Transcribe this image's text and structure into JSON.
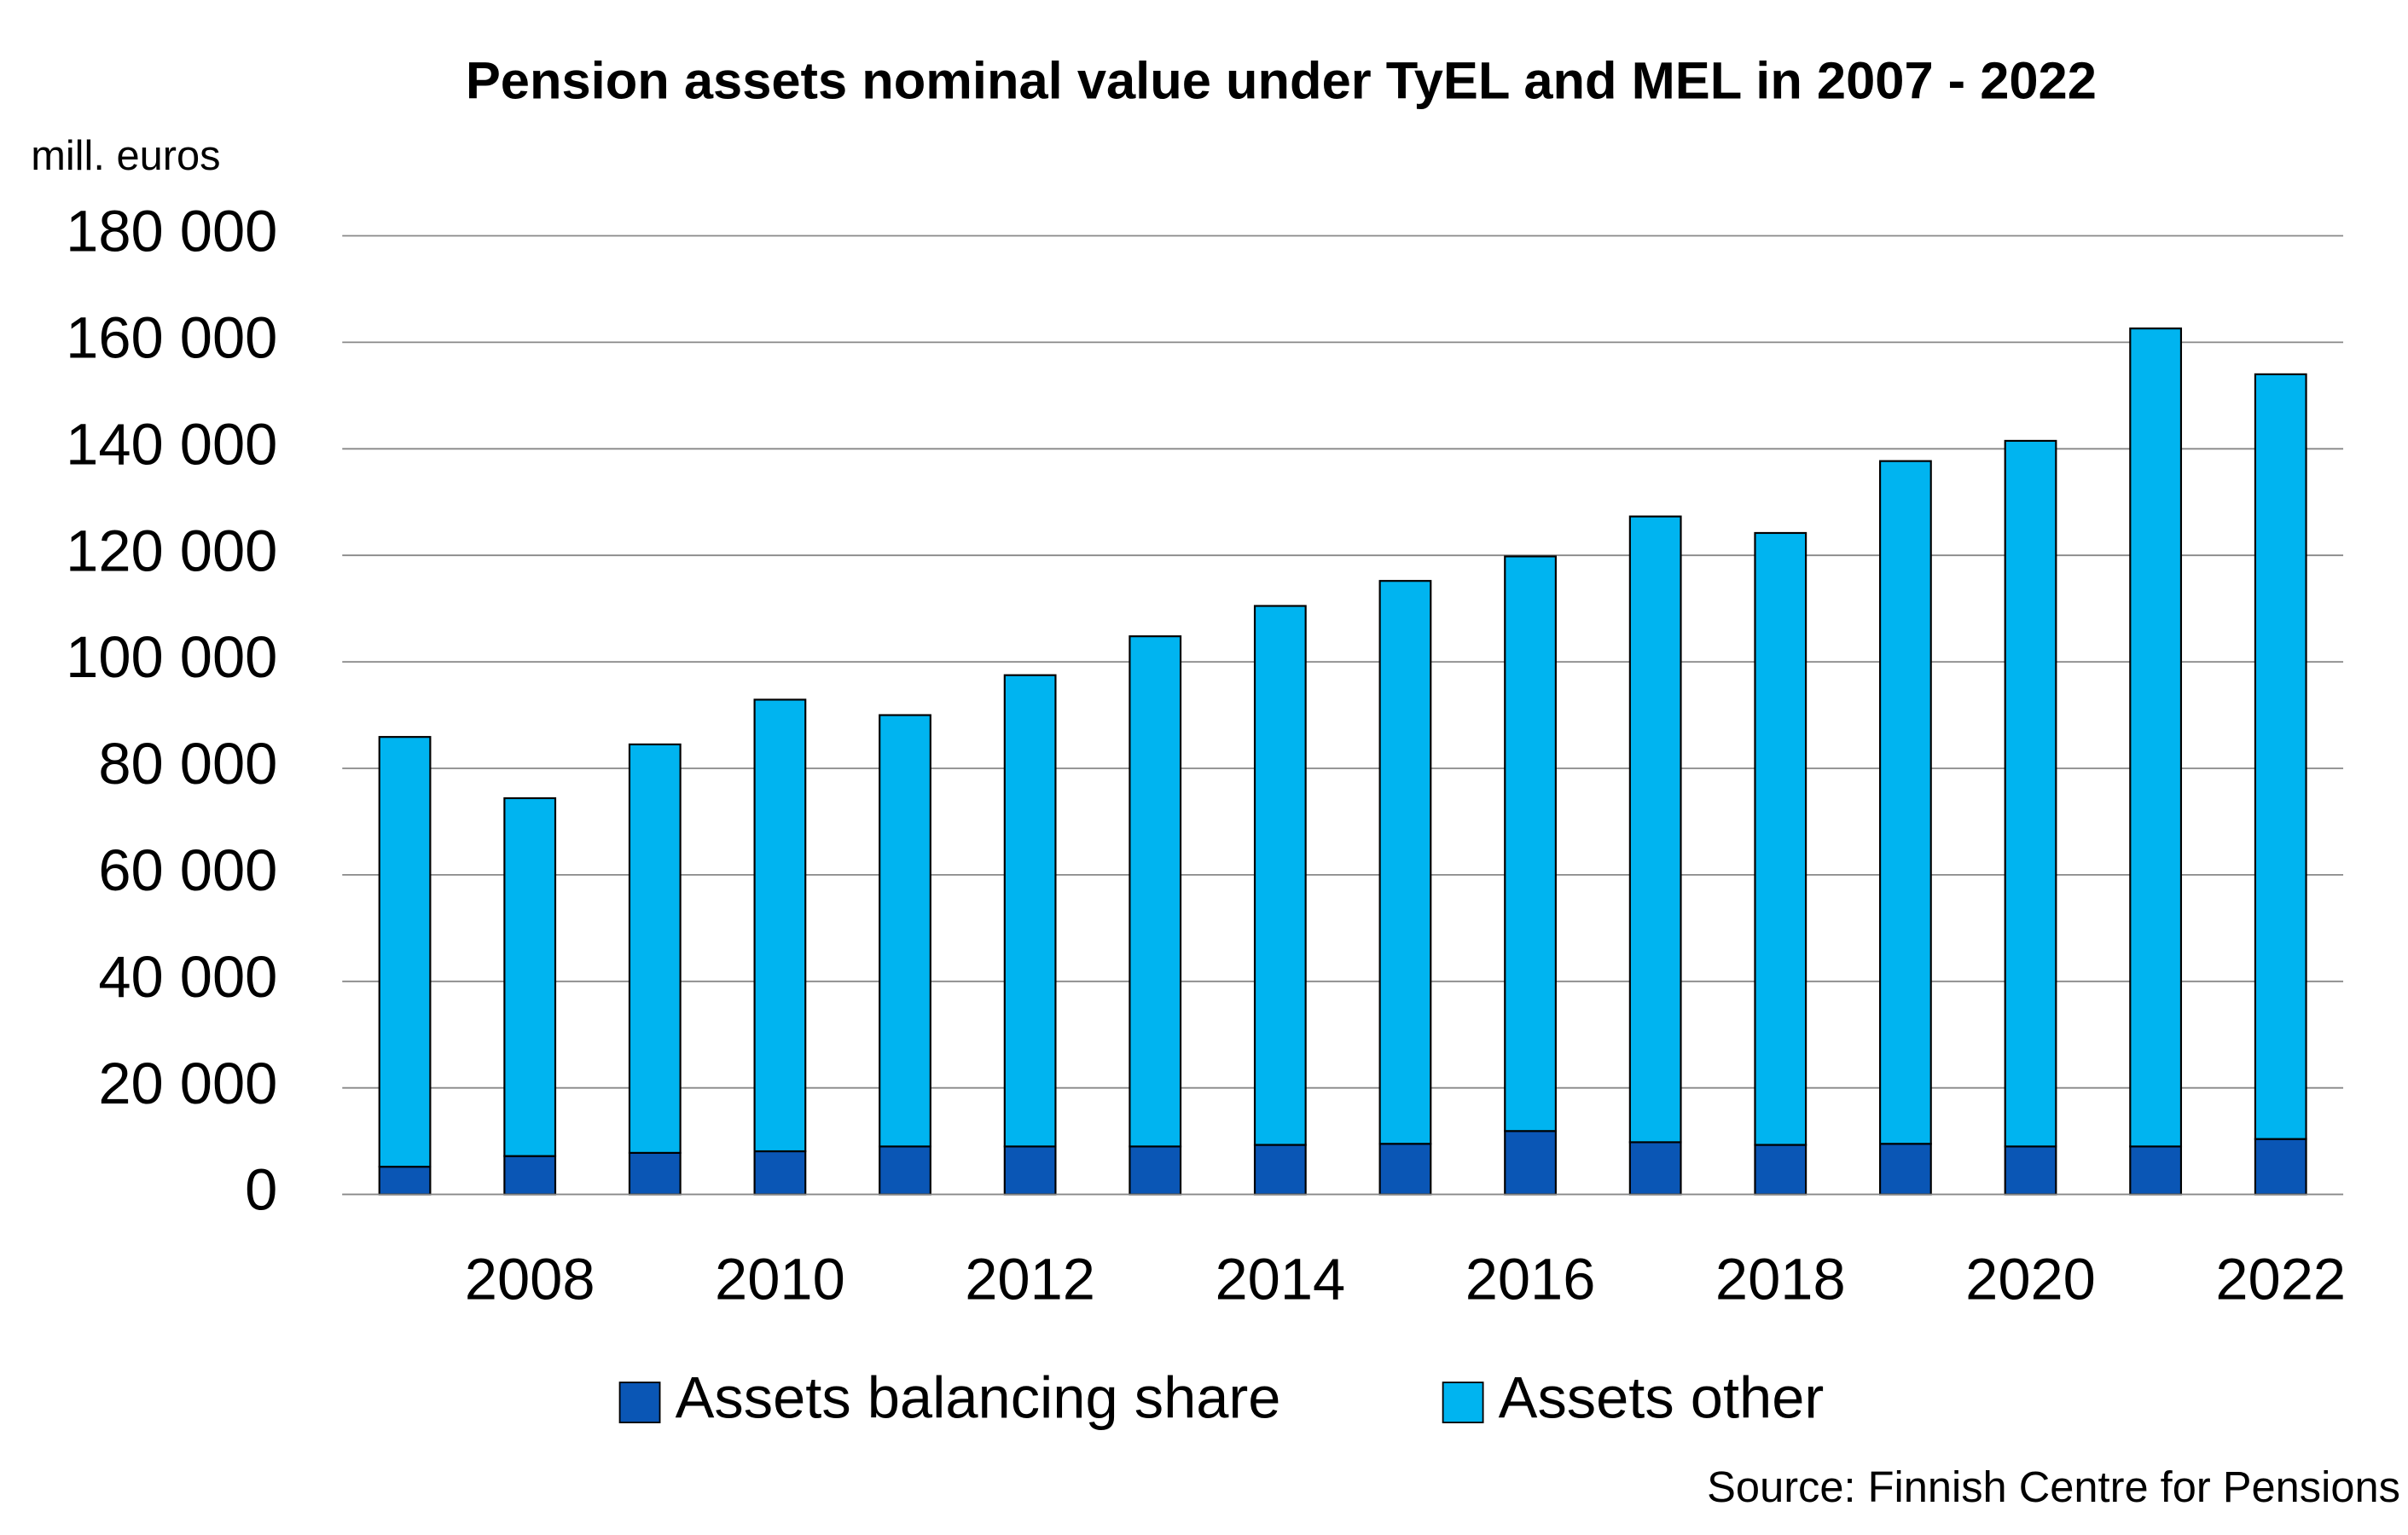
{
  "chart_data": {
    "type": "stacked_bar",
    "title": "Pension assets nominal value under TyEL and MEL in 2007 - 2022",
    "y_label": "mill. euros",
    "source": "Source: Finnish Centre for Pensions",
    "categories": [
      null,
      "2008",
      null,
      "2010",
      null,
      "2012",
      null,
      "2014",
      null,
      "2016",
      null,
      "2018",
      null,
      "2020",
      null,
      "2022"
    ],
    "series": [
      {
        "name": "Assets balancing share",
        "color": "#0a56b5",
        "values": [
          5200,
          7200,
          7800,
          8100,
          9000,
          9000,
          9000,
          9300,
          9500,
          11900,
          9800,
          9300,
          9500,
          9000,
          9000,
          10400
        ]
      },
      {
        "name": "Assets other",
        "color": "#00b4f0",
        "values": [
          80700,
          67200,
          76700,
          84800,
          81000,
          88500,
          95800,
          101200,
          105700,
          107900,
          117500,
          114900,
          128200,
          132500,
          153600,
          143600
        ]
      }
    ],
    "ylim": [
      0,
      180000
    ],
    "yticks": [
      0,
      {
        "value": 20000,
        "label": "20 000"
      },
      {
        "value": 40000,
        "label": "40 000"
      },
      {
        "value": 60000,
        "label": "60 000"
      },
      {
        "value": 80000,
        "label": "80 000"
      },
      {
        "value": 100000,
        "label": "100 000"
      },
      {
        "value": 120000,
        "label": "120 000"
      },
      {
        "value": 140000,
        "label": "140 000"
      },
      {
        "value": 160000,
        "label": "160 000"
      },
      {
        "value": 180000,
        "label": "180 000"
      }
    ],
    "grid": true,
    "legend": "bottom"
  }
}
